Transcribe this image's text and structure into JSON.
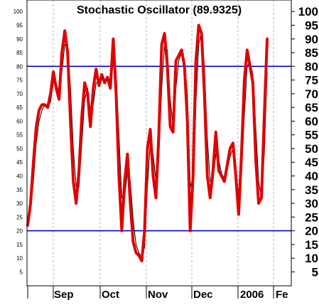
{
  "chart_data": {
    "type": "line",
    "title": "Stochastic Oscillator (89.9325)",
    "ylim": [
      0,
      105
    ],
    "y_ticks": [
      5,
      10,
      15,
      20,
      25,
      30,
      35,
      40,
      45,
      50,
      55,
      60,
      65,
      70,
      75,
      80,
      85,
      90,
      95,
      100
    ],
    "y_tick_labels_left": [
      "5",
      "10",
      "15",
      "20",
      "25",
      "30",
      "35",
      "40",
      "45",
      "50",
      "55",
      "60",
      "65",
      "70",
      "75",
      "80",
      "85",
      "90",
      "95",
      "100"
    ],
    "y_tick_labels_right": [
      "5",
      "10",
      "15",
      "20",
      "25",
      "30",
      "35",
      "40",
      "45",
      "50",
      "55",
      "60",
      "65",
      "70",
      "75",
      "80",
      "85",
      "90",
      "95",
      "100"
    ],
    "x_labels": [
      "Sep",
      "Oct",
      "Nov",
      "Dec",
      "2006",
      "Fe"
    ],
    "reference_lines": [
      80,
      20
    ],
    "colors": {
      "fast": "#e00000",
      "slow": "#000000",
      "reference": "#0000cc",
      "grid": "#b0b0b0"
    },
    "series": [
      {
        "values": [
          22,
          30,
          45,
          58,
          64,
          66,
          66,
          65,
          70,
          78,
          72,
          68,
          85,
          93,
          85,
          60,
          38,
          30,
          42,
          62,
          74,
          70,
          58,
          72,
          79,
          73,
          77,
          74,
          76,
          72,
          90,
          70,
          40,
          20,
          38,
          48,
          30,
          16,
          12,
          11,
          9,
          20,
          50,
          57,
          40,
          32,
          55,
          88,
          92,
          80,
          58,
          56,
          82,
          84,
          86,
          80,
          60,
          20,
          40,
          82,
          95,
          92,
          70,
          40,
          32,
          42,
          56,
          42,
          40,
          38,
          44,
          50,
          52,
          40,
          26,
          48,
          75,
          86,
          80,
          74,
          46,
          30,
          32,
          62,
          90
        ]
      },
      {
        "values": [
          25,
          27,
          38,
          52,
          60,
          64,
          66,
          65,
          67,
          74,
          74,
          70,
          78,
          88,
          88,
          72,
          50,
          36,
          36,
          52,
          68,
          72,
          64,
          66,
          74,
          74,
          75,
          75,
          75,
          73,
          82,
          78,
          55,
          32,
          32,
          42,
          38,
          24,
          15,
          12,
          10,
          14,
          36,
          52,
          48,
          38,
          46,
          72,
          88,
          86,
          68,
          58,
          72,
          82,
          85,
          82,
          70,
          38,
          32,
          66,
          88,
          93,
          80,
          54,
          38,
          38,
          48,
          46,
          41,
          39,
          42,
          47,
          50,
          44,
          32,
          40,
          62,
          80,
          82,
          77,
          58,
          38,
          32,
          48,
          78
        ]
      }
    ]
  }
}
